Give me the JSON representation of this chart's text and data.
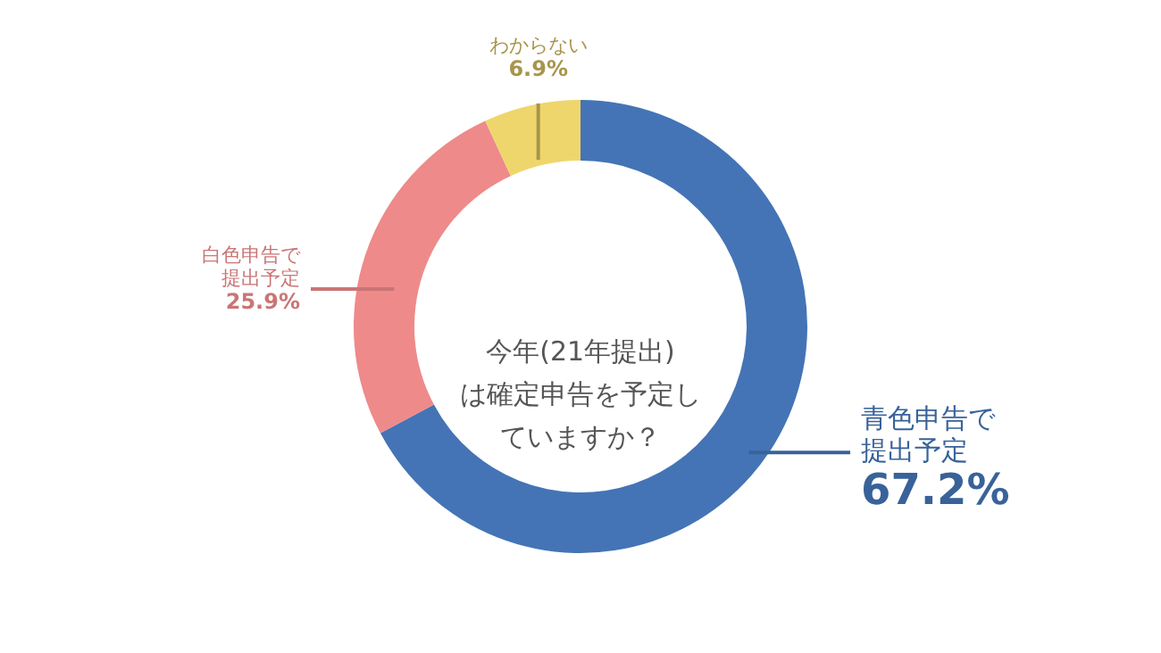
{
  "chart_data": {
    "type": "donut",
    "title": "今年(21年提出)は確定申告を予定していますか？",
    "categories": [
      "青色申告で提出予定",
      "白色申告で提出予定",
      "わからない"
    ],
    "values": [
      67.2,
      25.9,
      6.9
    ],
    "value_labels": [
      "67.2%",
      "25.9%",
      "6.9%"
    ],
    "colors": [
      "#4474b5",
      "#ee8a8a",
      "#efd66c"
    ]
  }
}
